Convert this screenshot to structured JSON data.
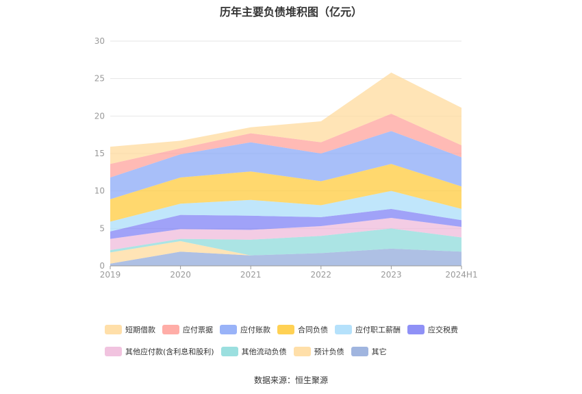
{
  "chart_data": {
    "type": "area",
    "stacked": true,
    "title": "历年主要负债堆积图（亿元）",
    "categories": [
      "2019",
      "2020",
      "2021",
      "2022",
      "2023",
      "2024H1"
    ],
    "ylim": [
      0,
      30
    ],
    "yticks": [
      0,
      5,
      10,
      15,
      20,
      25,
      30
    ],
    "grid": true,
    "legend_position": "bottom",
    "series": [
      {
        "name": "其它",
        "color": "#8fa8d9",
        "values": [
          0.3,
          1.9,
          1.4,
          1.7,
          2.3,
          1.9
        ]
      },
      {
        "name": "预计负债",
        "color": "#ffd99a",
        "values": [
          1.5,
          1.4,
          0.0,
          0.0,
          0.0,
          0.0
        ]
      },
      {
        "name": "其他流动负债",
        "color": "#8ad9d9",
        "values": [
          0.3,
          0.3,
          2.1,
          2.3,
          2.7,
          1.9
        ]
      },
      {
        "name": "其他应付款(含利息和股利)",
        "color": "#efb8d9",
        "values": [
          1.5,
          1.3,
          1.3,
          1.3,
          1.4,
          1.4
        ]
      },
      {
        "name": "应交税费",
        "color": "#7b7ef5",
        "values": [
          1.0,
          1.9,
          1.9,
          1.2,
          1.2,
          0.9
        ]
      },
      {
        "name": "应付职工薪酬",
        "color": "#a8dcfa",
        "values": [
          1.3,
          1.5,
          2.1,
          1.6,
          2.4,
          1.5
        ]
      },
      {
        "name": "合同负债",
        "color": "#ffc936",
        "values": [
          3.0,
          3.5,
          3.8,
          3.2,
          3.6,
          3.0
        ]
      },
      {
        "name": "应付账款",
        "color": "#87a6f7",
        "values": [
          2.9,
          3.1,
          3.9,
          3.7,
          4.4,
          3.9
        ]
      },
      {
        "name": "应付票据",
        "color": "#ff9f98",
        "values": [
          1.8,
          0.8,
          1.2,
          1.5,
          2.3,
          1.6
        ]
      },
      {
        "name": "短期借款",
        "color": "#ffd99a",
        "values": [
          2.3,
          1.0,
          0.8,
          2.8,
          5.5,
          5.0
        ]
      }
    ],
    "legend_order": [
      "短期借款",
      "应付票据",
      "应付账款",
      "合同负债",
      "应付职工薪酬",
      "应交税费",
      "其他应付款(含利息和股利)",
      "其他流动负债",
      "预计负债",
      "其它"
    ]
  },
  "footer": {
    "source": "数据来源：恒生聚源"
  }
}
